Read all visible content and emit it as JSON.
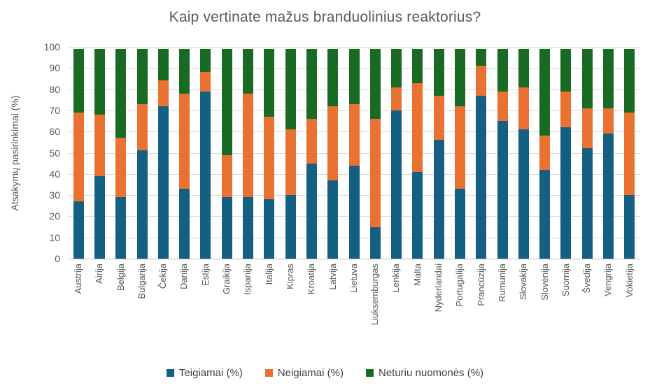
{
  "chart_data": {
    "type": "bar",
    "stacked": true,
    "title": "Kaip vertinate mažus branduolinius reaktorius?",
    "ylabel": "Atsakymų pasirinkimai (%)",
    "xlabel": "",
    "ylim": [
      0,
      100
    ],
    "ytick_step": 10,
    "yticks": [
      0,
      10,
      20,
      30,
      40,
      50,
      60,
      70,
      80,
      90,
      100
    ],
    "grid": true,
    "legend_position": "bottom",
    "categories": [
      "Austrija",
      "Airija",
      "Belgija",
      "Bulgarija",
      "Čekija",
      "Danija",
      "Estija",
      "Graikija",
      "Ispanija",
      "Italija",
      "Kipras",
      "Kroatija",
      "Latvija",
      "Lietuva",
      "Liuksemburgas",
      "Lenkija",
      "Malta",
      "Nyderlandai",
      "Portugalija",
      "Prancūzija",
      "Rumunija",
      "Slovakija",
      "Slovėnija",
      "Suomija",
      "Švedija",
      "Vengrija",
      "Vokietija"
    ],
    "series": [
      {
        "name": "Teigiamai (%)",
        "color": "#156082",
        "values": [
          27,
          39,
          29,
          51,
          72,
          33,
          79,
          29,
          29,
          28,
          30,
          45,
          37,
          44,
          15,
          70,
          41,
          56,
          33,
          77,
          65,
          61,
          42,
          62,
          52,
          59,
          30
        ]
      },
      {
        "name": "Neigiamai (%)",
        "color": "#E97132",
        "values": [
          42,
          29,
          28,
          22,
          12,
          45,
          9,
          20,
          49,
          39,
          31,
          21,
          35,
          29,
          51,
          11,
          42,
          21,
          39,
          14,
          14,
          20,
          16,
          17,
          19,
          12,
          39
        ]
      },
      {
        "name": "Neturiu nuomonės (%)",
        "color": "#196B24",
        "values": [
          30,
          31,
          42,
          26,
          15,
          21,
          11,
          50,
          21,
          32,
          38,
          33,
          27,
          26,
          33,
          18,
          16,
          22,
          27,
          8,
          20,
          18,
          41,
          20,
          28,
          28,
          30
        ]
      }
    ]
  },
  "colors": {
    "background": "#FFFFFF",
    "title_text": "#595959",
    "axis_text": "#595959",
    "legend_text": "#404040",
    "gridline": "#D9D9D9",
    "axis_line": "#BFBFBF"
  }
}
